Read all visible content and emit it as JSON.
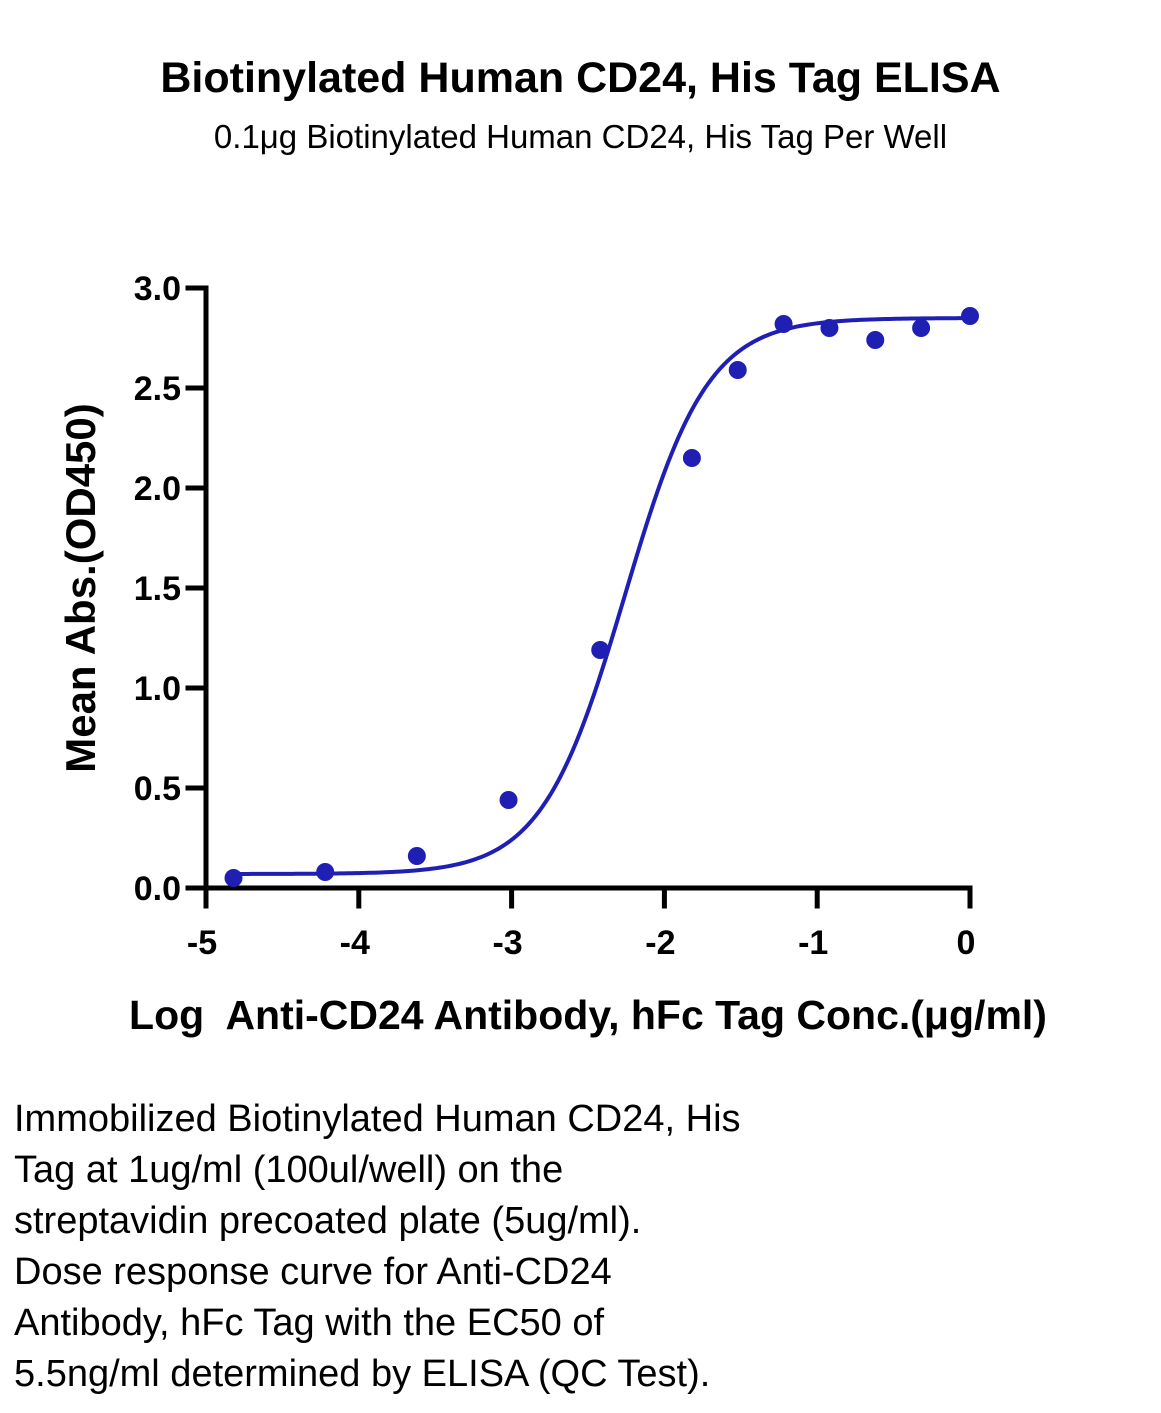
{
  "chart_data": {
    "type": "scatter",
    "title": "Biotinylated Human CD24, His Tag ELISA",
    "subtitle": "0.1μg Biotinylated Human CD24, His Tag Per Well",
    "xlabel": "Log  Anti-CD24 Antibody, hFc Tag Conc.(μg/ml)",
    "ylabel": "Mean Abs.(OD450)",
    "xlim": [
      -5,
      0
    ],
    "ylim": [
      0,
      3.0
    ],
    "x_ticks": [
      "-5",
      "-4",
      "-3",
      "-2",
      "-1",
      "0"
    ],
    "y_ticks": [
      "0.0",
      "0.5",
      "1.0",
      "1.5",
      "2.0",
      "2.5",
      "3.0"
    ],
    "grid": false,
    "legend": "none",
    "color": "#1f1fb4",
    "series": [
      {
        "x": [
          -4.82,
          -4.22,
          -3.62,
          -3.02,
          -2.42,
          -1.82,
          -1.52,
          -1.22,
          -0.92,
          -0.62,
          -0.32,
          0.0
        ],
        "values": [
          0.05,
          0.08,
          0.16,
          0.44,
          1.19,
          2.15,
          2.59,
          2.82,
          2.8,
          2.74,
          2.8,
          2.86
        ],
        "fit": "4PL",
        "fit_params": {
          "bottom": 0.07,
          "top": 2.85,
          "log_ec50": -2.26,
          "hill": 1.6
        }
      }
    ]
  },
  "caption": [
    "Immobilized Biotinylated Human CD24, His",
    "Tag at 1ug/ml (100ul/well) on the",
    "streptavidin precoated plate (5ug/ml).",
    "Dose response curve for Anti-CD24",
    "Antibody, hFc Tag with the EC50 of",
    "5.5ng/ml determined by ELISA (QC Test)."
  ]
}
